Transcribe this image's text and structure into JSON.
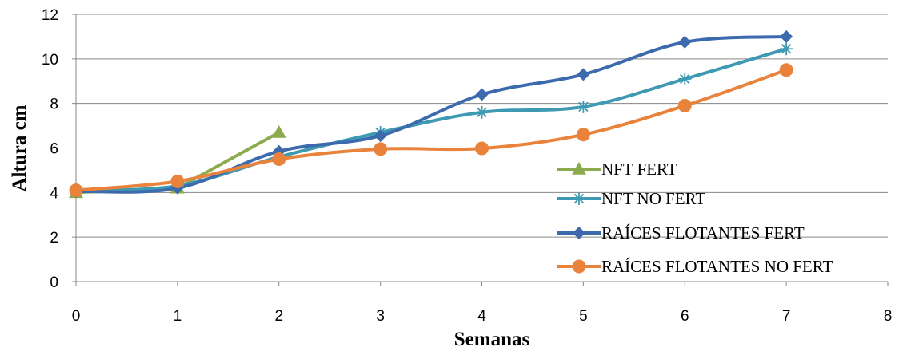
{
  "chart_data": {
    "type": "line",
    "title": "",
    "xlabel": "Semanas",
    "ylabel": "Altura cm",
    "xlim": [
      0,
      8
    ],
    "ylim": [
      0,
      12
    ],
    "x_ticks": [
      0,
      1,
      2,
      3,
      4,
      5,
      6,
      7,
      8
    ],
    "y_ticks": [
      0,
      2,
      4,
      6,
      8,
      10,
      12
    ],
    "grid": "horizontal",
    "legend_position": "bottom-right",
    "series": [
      {
        "name": "NFT FERT",
        "color": "#8CAB4E",
        "marker": "triangle",
        "smooth": false,
        "x": [
          0,
          1,
          2
        ],
        "y": [
          4.0,
          4.2,
          6.7
        ]
      },
      {
        "name": "NFT NO FERT",
        "color": "#3E9AB3",
        "marker": "asterisk",
        "smooth": true,
        "x": [
          0,
          1,
          2,
          3,
          4,
          5,
          6,
          7
        ],
        "y": [
          4.1,
          4.3,
          5.6,
          6.7,
          7.6,
          7.85,
          9.1,
          10.45
        ]
      },
      {
        "name": "RAÍCES FLOTANTES FERT",
        "color": "#3D6AAC",
        "marker": "diamond",
        "smooth": true,
        "x": [
          0,
          1,
          2,
          3,
          4,
          5,
          6,
          7
        ],
        "y": [
          4.05,
          4.2,
          5.85,
          6.55,
          8.4,
          9.3,
          10.75,
          11.0
        ]
      },
      {
        "name": "RAÍCES FLOTANTES NO FERT",
        "color": "#E9823B",
        "marker": "circle",
        "smooth": true,
        "x": [
          0,
          1,
          2,
          3,
          4,
          5,
          6,
          7
        ],
        "y": [
          4.1,
          4.5,
          5.5,
          5.95,
          5.98,
          6.6,
          7.9,
          9.5
        ]
      }
    ]
  }
}
